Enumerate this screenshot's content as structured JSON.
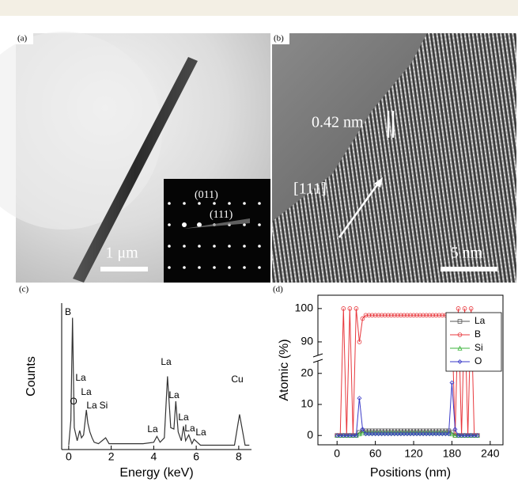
{
  "panels": {
    "a": {
      "label": "(a)",
      "scale_bar": "1 μm",
      "inset_labels": [
        "(011)",
        "(111)"
      ]
    },
    "b": {
      "label": "(b)",
      "spacing": "0.42 nm",
      "direction": "[111]",
      "scale_bar": "5 nm"
    }
  },
  "chart_data": [
    {
      "type": "line",
      "panel_label": "(c)",
      "x_label": "Energy (keV)",
      "y_label": "Counts",
      "color": "#333333",
      "xlim": [
        -0.33,
        8.6
      ],
      "xticks": [
        0,
        2,
        4,
        6,
        8
      ],
      "ylim": [
        0,
        100
      ],
      "x": [
        0,
        0.1,
        0.18,
        0.26,
        0.4,
        0.52,
        0.6,
        0.7,
        0.83,
        0.9,
        1.0,
        1.1,
        1.2,
        1.4,
        1.74,
        1.9,
        2.5,
        3.5,
        4.0,
        4.15,
        4.3,
        4.5,
        4.65,
        4.8,
        4.95,
        5.04,
        5.15,
        5.3,
        5.4,
        5.5,
        5.65,
        5.8,
        5.9,
        6.05,
        6.2,
        6.5,
        7.0,
        7.8,
        8.04,
        8.3,
        8.5
      ],
      "values": [
        3,
        20,
        90,
        15,
        6,
        13,
        8,
        10,
        27,
        18,
        12,
        8,
        5,
        4,
        8,
        4,
        4,
        4,
        5,
        9,
        5,
        8,
        50,
        15,
        14,
        33,
        12,
        6,
        16,
        6,
        10,
        4,
        7,
        5,
        3,
        3,
        3,
        3,
        24,
        3,
        3
      ],
      "annotations": [
        "B",
        "O",
        "La",
        "La",
        "La",
        "Si",
        "La",
        "La",
        "La",
        "La",
        "La",
        "La",
        "Cu"
      ]
    },
    {
      "type": "line",
      "panel_label": "(d)",
      "x_label": "Positions (nm)",
      "y_label": "Atomic (%)",
      "xlim": [
        -30,
        260
      ],
      "xticks": [
        0,
        60,
        120,
        180,
        240
      ],
      "ylim": [
        -3,
        104
      ],
      "ybreak": [
        23,
        87
      ],
      "yticks": [
        0,
        10,
        20,
        90,
        100
      ],
      "legend": "upper right",
      "x": [
        0,
        5,
        10,
        15,
        20,
        25,
        30,
        35,
        40,
        45,
        50,
        55,
        60,
        65,
        70,
        75,
        80,
        85,
        90,
        95,
        100,
        105,
        110,
        115,
        120,
        125,
        130,
        135,
        140,
        145,
        150,
        155,
        160,
        165,
        170,
        175,
        180,
        185,
        190,
        195,
        200,
        205,
        210,
        215,
        220
      ],
      "series": [
        {
          "name": "La",
          "color": "#555555",
          "marker": "square",
          "values": [
            0,
            0,
            0,
            0,
            0,
            0,
            0,
            1,
            1.5,
            1.5,
            1.5,
            1.5,
            1.5,
            1.5,
            1.5,
            1.5,
            1.5,
            1.5,
            1.5,
            1.5,
            1.5,
            1.5,
            1.5,
            1.5,
            1.5,
            1.5,
            1.5,
            1.5,
            1.5,
            1.5,
            1.5,
            1.5,
            1.5,
            1.5,
            1.5,
            1.5,
            1,
            0,
            0,
            0,
            0,
            0,
            0,
            0,
            0
          ]
        },
        {
          "name": "B",
          "color": "#e8383d",
          "marker": "circle",
          "values": [
            0,
            0,
            100,
            0,
            100,
            0,
            100,
            90,
            97,
            98,
            98,
            98,
            98,
            98,
            98,
            98,
            98,
            98,
            98,
            98,
            98,
            98,
            98,
            98,
            98,
            98,
            98,
            98,
            98,
            98,
            98,
            98,
            98,
            98,
            98,
            98,
            96,
            0,
            100,
            0,
            100,
            0,
            100,
            0,
            0
          ]
        },
        {
          "name": "Si",
          "color": "#3cb43c",
          "marker": "triangle",
          "values": [
            0,
            0,
            0,
            0,
            0,
            0,
            0,
            0.5,
            0.8,
            0.8,
            0.8,
            0.8,
            0.8,
            0.8,
            0.8,
            0.8,
            0.8,
            0.8,
            0.8,
            0.8,
            0.8,
            0.8,
            0.8,
            0.8,
            0.8,
            0.8,
            0.8,
            0.8,
            0.8,
            0.8,
            0.8,
            0.8,
            0.8,
            0.8,
            0.8,
            0.8,
            0.5,
            0,
            0,
            0,
            0,
            0,
            0,
            0,
            0
          ]
        },
        {
          "name": "O",
          "color": "#3a3ac8",
          "marker": "diamond",
          "values": [
            0,
            0,
            0,
            0,
            0,
            0,
            0,
            12,
            2,
            0.5,
            0.5,
            0.5,
            0.5,
            0.5,
            0.5,
            0.5,
            0.5,
            0.5,
            0.5,
            0.5,
            0.5,
            0.5,
            0.5,
            0.5,
            0.5,
            0.5,
            0.5,
            0.5,
            0.5,
            0.5,
            0.5,
            0.5,
            0.5,
            0.5,
            0.5,
            0.5,
            17,
            2,
            0,
            0,
            0,
            0,
            0,
            0,
            0
          ]
        }
      ]
    }
  ]
}
